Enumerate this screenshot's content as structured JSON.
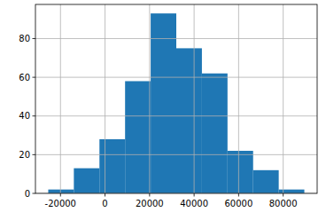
{
  "chart_data": {
    "type": "histogram",
    "bins": [
      -25500,
      -14000,
      -2500,
      9000,
      20500,
      32000,
      43500,
      55000,
      66500,
      78000,
      89500
    ],
    "values": [
      2,
      13,
      28,
      58,
      93,
      75,
      62,
      22,
      12,
      2
    ],
    "color": "#1f77b4",
    "xlim": [
      -31250,
      95250
    ],
    "xticks": [
      -20000,
      0,
      20000,
      40000,
      60000,
      80000
    ],
    "ylim": [
      0,
      97.65
    ],
    "yticks": [
      0,
      20,
      40,
      60,
      80
    ],
    "grid": true
  }
}
